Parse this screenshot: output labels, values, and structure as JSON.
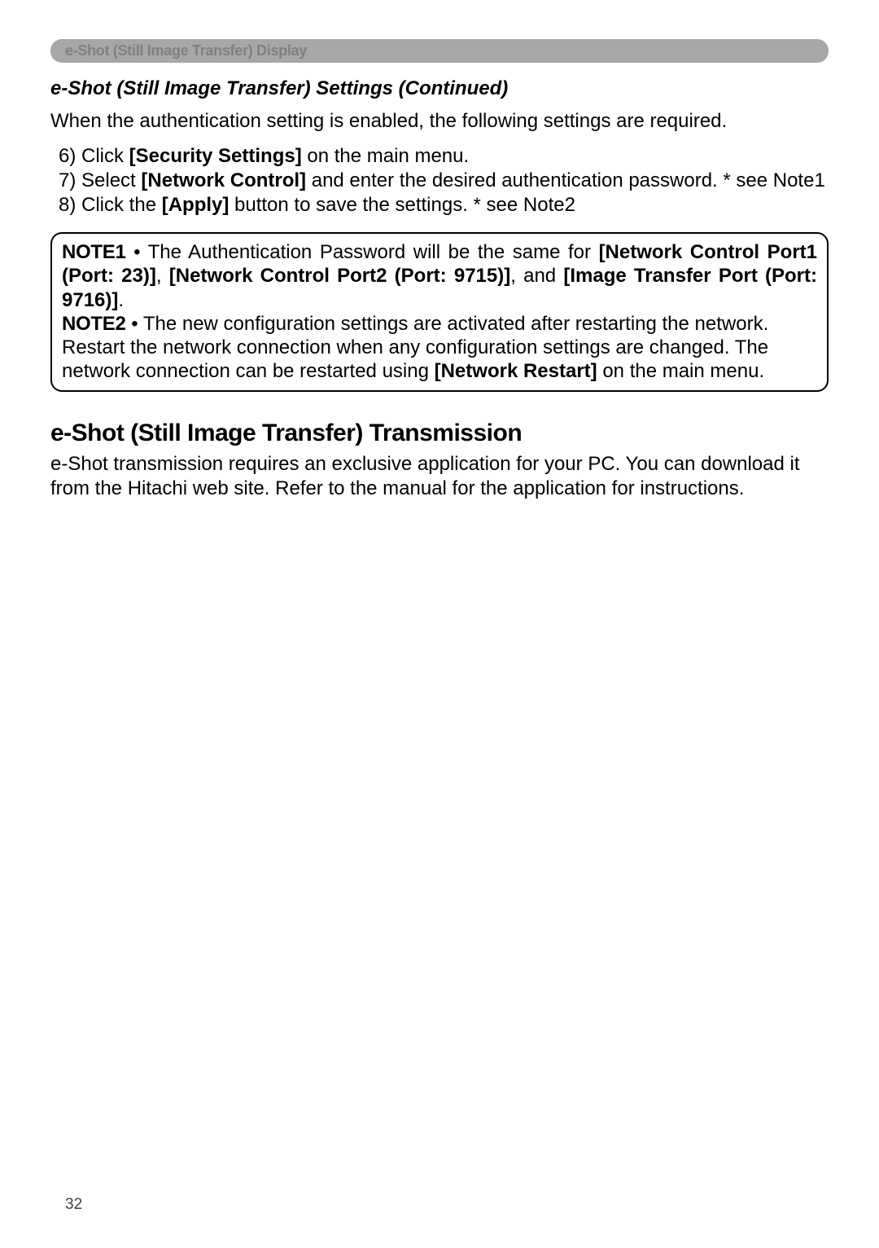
{
  "section_tab": "e-Shot (Still Image Transfer) Display",
  "heading_italic": "e-Shot (Still Image Transfer) Settings (Continued)",
  "intro": "When the authentication setting is enabled, the following settings are required.",
  "list": {
    "item6_prefix": "6) Click ",
    "item6_bold": "[Security Settings]",
    "item6_suffix": " on the main menu.",
    "item7_prefix": "7) Select ",
    "item7_bold": "[Network Control]",
    "item7_suffix": " and enter the desired authentication password. * see Note1",
    "item8_prefix": "8) Click the ",
    "item8_bold": "[Apply]",
    "item8_suffix": " button to save the settings. * see Note2"
  },
  "notebox": {
    "note1_label": "NOTE1",
    "note1_text1": " • The Authentication Password will be the same for ",
    "note1_bold1": "[Network Control Port1 (Port: 23)]",
    "note1_text2": ", ",
    "note1_bold2": "[Network Control Port2 (Port: 9715)]",
    "note1_text3": ", and ",
    "note1_bold3": "[Image Transfer Port (Port: 9716)]",
    "note1_text4": ".",
    "note2_label": "NOTE2",
    "note2_text1": " • The new configuration settings are activated after restarting the network. Restart the network connection when any configuration settings are changed. The network connection can be restarted using ",
    "note2_bold1": "[Network Restart]",
    "note2_text2": " on the main menu."
  },
  "section_heading": "e-Shot (Still Image Transfer) Transmission",
  "body": "e-Shot transmission requires an exclusive application for your PC. You can download it from the Hitachi web site. Refer to the manual for the application for instructions.",
  "page_number": "32"
}
